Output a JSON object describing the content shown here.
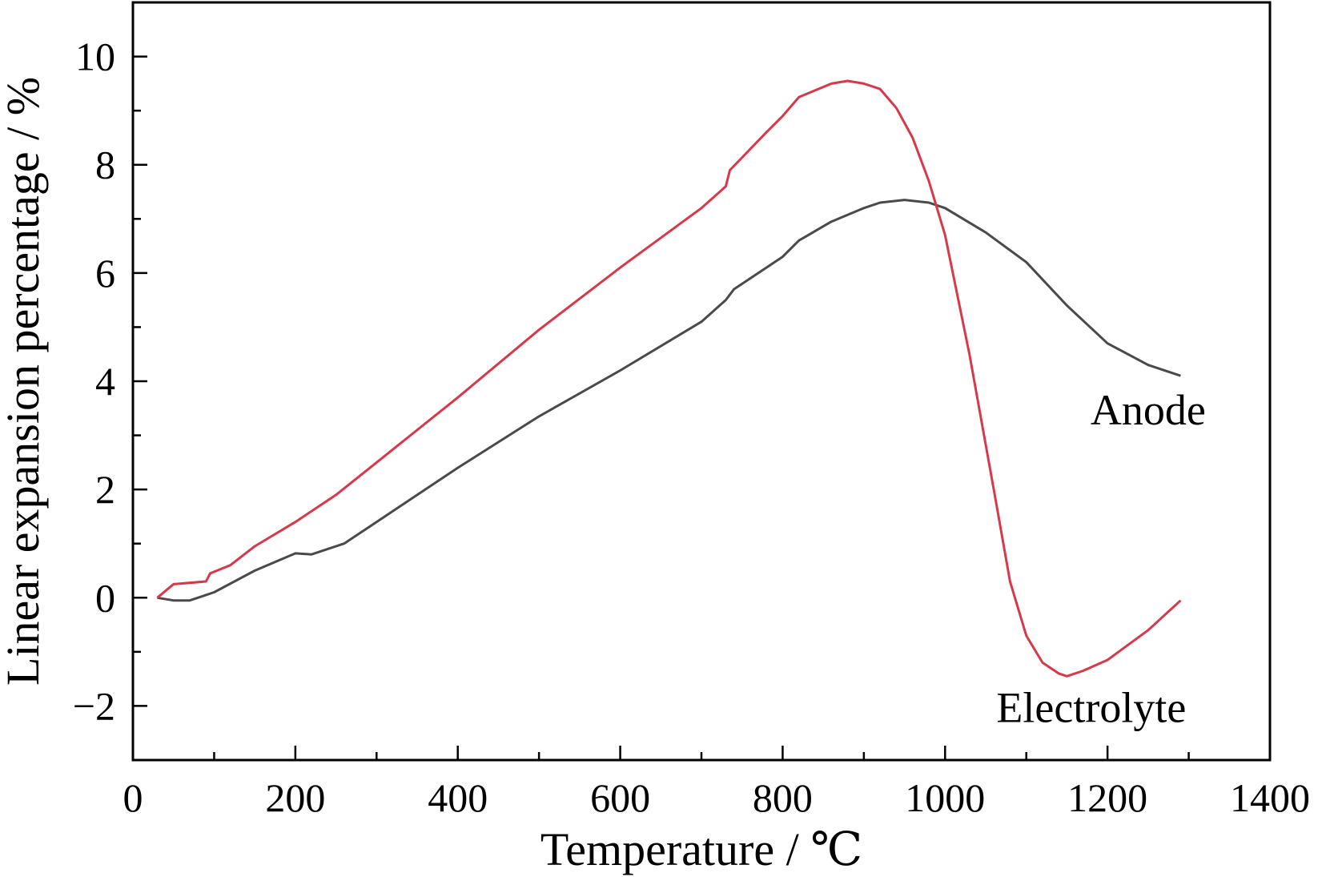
{
  "chart_data": {
    "type": "line",
    "title": "",
    "xlabel": "Temperature / ℃",
    "ylabel": "Linear expansion percentage / %",
    "xlim": [
      0,
      1400
    ],
    "ylim": [
      -3,
      11
    ],
    "xticks": [
      0,
      200,
      400,
      600,
      800,
      1000,
      1200,
      1400
    ],
    "xtick_labels": [
      "0",
      "200",
      "400",
      "600",
      "800",
      "1000",
      "1200",
      "1400"
    ],
    "yticks": [
      -2,
      0,
      2,
      4,
      6,
      8,
      10
    ],
    "ytick_labels": [
      "−2",
      "0",
      "2",
      "4",
      "6",
      "8",
      "10"
    ],
    "grid": false,
    "legend": "none (direct labels)",
    "series": [
      {
        "name": "Anode",
        "color": "#4a4a4a",
        "x": [
          30,
          50,
          70,
          100,
          150,
          200,
          220,
          260,
          300,
          400,
          500,
          600,
          700,
          730,
          740,
          800,
          820,
          860,
          900,
          920,
          950,
          980,
          1000,
          1050,
          1100,
          1150,
          1200,
          1250,
          1290
        ],
        "y": [
          0,
          -0.05,
          -0.05,
          0.1,
          0.5,
          0.82,
          0.8,
          1.0,
          1.4,
          2.4,
          3.35,
          4.2,
          5.1,
          5.5,
          5.7,
          6.3,
          6.6,
          6.95,
          7.2,
          7.3,
          7.35,
          7.3,
          7.2,
          6.75,
          6.2,
          5.4,
          4.7,
          4.3,
          4.1
        ]
      },
      {
        "name": "Electrolyte",
        "color": "#d93849",
        "x": [
          30,
          50,
          90,
          95,
          120,
          150,
          200,
          250,
          300,
          400,
          500,
          600,
          700,
          730,
          735,
          780,
          800,
          820,
          860,
          880,
          900,
          920,
          940,
          960,
          980,
          1000,
          1030,
          1060,
          1080,
          1100,
          1120,
          1140,
          1150,
          1170,
          1200,
          1250,
          1290
        ],
        "y": [
          0,
          0.25,
          0.3,
          0.45,
          0.6,
          0.95,
          1.4,
          1.9,
          2.5,
          3.7,
          4.95,
          6.1,
          7.2,
          7.6,
          7.9,
          8.6,
          8.9,
          9.25,
          9.5,
          9.55,
          9.5,
          9.4,
          9.05,
          8.5,
          7.7,
          6.7,
          4.5,
          2.0,
          0.3,
          -0.7,
          -1.2,
          -1.4,
          -1.45,
          -1.35,
          -1.15,
          -0.6,
          -0.05
        ]
      }
    ],
    "annotations": [
      {
        "text": "Anode",
        "x": 1250,
        "y": 3.5,
        "series": "Anode"
      },
      {
        "text": "Electrolyte",
        "x": 1180,
        "y": -2.0,
        "series": "Electrolyte"
      }
    ]
  }
}
